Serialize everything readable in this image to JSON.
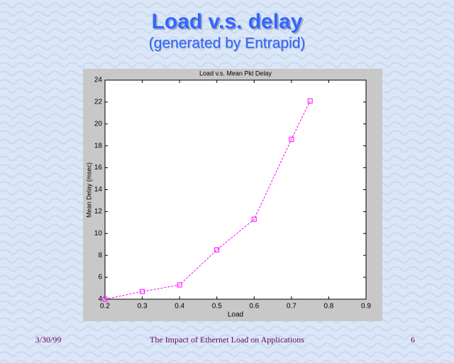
{
  "slide": {
    "title": "Load v.s. delay",
    "subtitle": "(generated by Entrapid)",
    "footer_date": "3/30/99",
    "footer_text": "The Impact of Ethernet Load on Applications",
    "page_number": "6"
  },
  "chart_data": {
    "type": "line",
    "title": "Load v.s. Mean Pkt Delay",
    "x_label": "Load",
    "y_label": "Mean Delay (msec)",
    "x": [
      0.2,
      0.3,
      0.4,
      0.5,
      0.6,
      0.7,
      0.75
    ],
    "values": [
      4.0,
      4.7,
      5.3,
      8.5,
      11.3,
      18.6,
      22.1
    ],
    "color": "#ff00ff",
    "xlim": [
      0.2,
      0.9
    ],
    "xticks": [
      0.2,
      0.3,
      0.4,
      0.5,
      0.6,
      0.7,
      0.8,
      0.9
    ],
    "ylim": [
      4,
      24
    ],
    "yticks": [
      4,
      6,
      8,
      10,
      12,
      14,
      16,
      18,
      20,
      22,
      24
    ]
  }
}
